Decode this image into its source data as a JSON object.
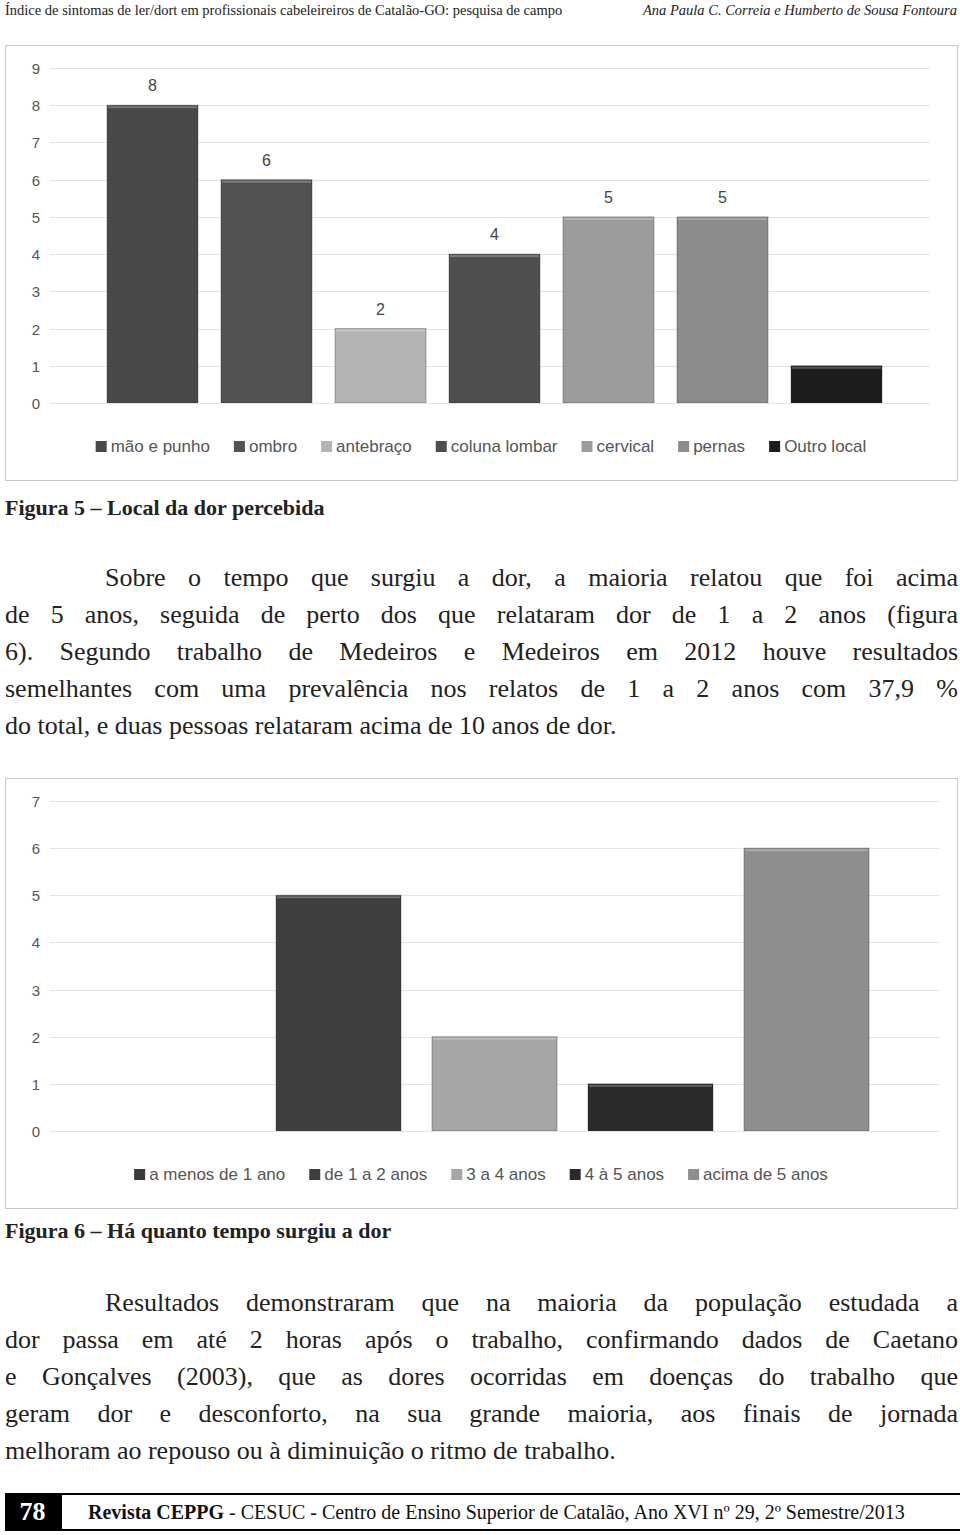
{
  "header": {
    "title": "Índice de sintomas de ler/dort em profissionais cabeleireiros de Catalão-GO: pesquisa de campo",
    "authors": "Ana Paula C. Correia e Humberto de Sousa Fontoura"
  },
  "chart_data": [
    {
      "type": "bar",
      "categories": [
        "mão e punho",
        "ombro",
        "antebraço",
        "coluna lombar",
        "cervical",
        "pernas",
        "Outro local"
      ],
      "values": [
        8,
        6,
        2,
        4,
        5,
        5,
        1
      ],
      "value_labels": [
        "8",
        "6",
        "2",
        "4",
        "5",
        "5",
        null
      ],
      "colors": [
        "#484848",
        "#525252",
        "#b4b4b4",
        "#4e4e4e",
        "#9c9c9c",
        "#8c8c8c",
        "#1c1c1c"
      ],
      "data_labels": true,
      "ylim": [
        0,
        9
      ],
      "yticks": [
        0,
        1,
        2,
        3,
        4,
        5,
        6,
        7,
        8,
        9
      ],
      "grid": true,
      "legend": "bottom",
      "tick_labels": "y"
    },
    {
      "type": "bar",
      "categories": [
        "a menos de 1 ano",
        "de 1 a 2 anos",
        "3 a 4 anos",
        "4 à 5 anos",
        "acima de 5 anos"
      ],
      "values": [
        0,
        5,
        2,
        1,
        6
      ],
      "colors": [
        "#3a3a3a",
        "#3e3e3e",
        "#a6a6a6",
        "#2a2a2a",
        "#8e8e8e"
      ],
      "data_labels": false,
      "ylim": [
        0,
        7
      ],
      "yticks": [
        0,
        1,
        2,
        3,
        4,
        5,
        6,
        7
      ],
      "grid": true,
      "legend": "bottom",
      "tick_labels": "y"
    }
  ],
  "captions": [
    "Figura 5 – Local da dor percebida",
    "Figura 6 – Há quanto tempo surgiu a dor"
  ],
  "paragraphs": [
    [
      "Sobre o tempo que surgiu a dor, a maioria relatou que foi acima",
      "de 5 anos, seguida de perto dos que relataram dor de 1 a 2 anos (figura",
      "6). Segundo trabalho de Medeiros e Medeiros em 2012 houve resultados",
      "semelhantes com uma prevalência nos relatos de 1 a 2 anos com 37,9 %",
      "do total, e duas pessoas relataram acima de 10 anos de dor."
    ],
    [
      "Resultados demonstraram que na maioria da população estudada a",
      "dor passa em até 2 horas após o trabalho, confirmando dados de Caetano",
      "e Gonçalves (2003), que as dores ocorridas em doenças do trabalho que",
      "geram dor e desconforto, na sua grande maioria, aos finais de jornada",
      "melhoram ao repouso ou à diminuição o ritmo de trabalho."
    ]
  ],
  "footer": {
    "page": "78",
    "journal": "Revista CEPPG",
    "text": " - CESUC - Centro de Ensino Superior de Catalão, Ano XVI nº 29, 2º Semestre/2013"
  }
}
